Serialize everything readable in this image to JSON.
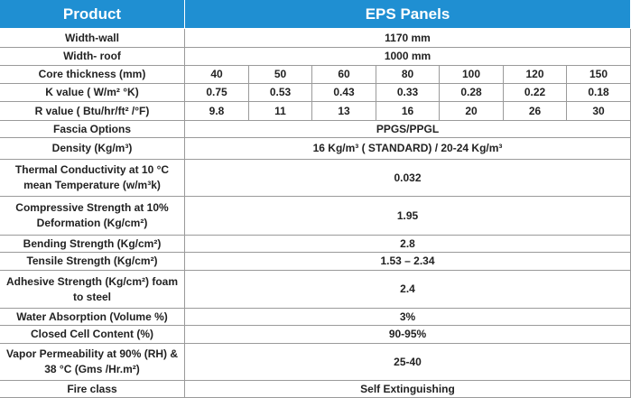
{
  "header": {
    "title": "Product",
    "product": "EPS Panels"
  },
  "rows": [
    {
      "label": "Width-wall",
      "values": [
        "1170 mm"
      ]
    },
    {
      "label": "Width- roof",
      "values": [
        "1000 mm"
      ]
    },
    {
      "label": "Core thickness (mm)",
      "values": [
        "40",
        "50",
        "60",
        "80",
        "100",
        "120",
        "150"
      ]
    },
    {
      "label": "K value ( W/m² °K)",
      "values": [
        "0.75",
        "0.53",
        "0.43",
        "0.33",
        "0.28",
        "0.22",
        "0.18"
      ]
    },
    {
      "label": "R value   ( Btu/hr/ft² /°F)",
      "values": [
        "9.8",
        "11",
        "13",
        "16",
        "20",
        "26",
        "30"
      ]
    },
    {
      "label": "Fascia Options",
      "values": [
        "PPGS/PPGL"
      ]
    },
    {
      "label": "Density (Kg/m³)",
      "values": [
        "16 Kg/m³ ( STANDARD) / 20-24 Kg/m³"
      ]
    },
    {
      "label": "Thermal Conductivity at 10 °C mean Temperature (w/m³k)",
      "values": [
        "0.032"
      ]
    },
    {
      "label": "Compressive Strength at 10% Deformation (Kg/cm²)",
      "values": [
        "1.95"
      ]
    },
    {
      "label": "Bending Strength (Kg/cm²)",
      "values": [
        "2.8"
      ]
    },
    {
      "label": "Tensile Strength (Kg/cm²)",
      "values": [
        "1.53 – 2.34"
      ]
    },
    {
      "label": "Adhesive Strength (Kg/cm²) foam to steel",
      "values": [
        "2.4"
      ]
    },
    {
      "label": "Water Absorption (Volume %)",
      "values": [
        "3%"
      ]
    },
    {
      "label": "Closed Cell Content (%)",
      "values": [
        "90-95%"
      ]
    },
    {
      "label": "Vapor Permeability at 90% (RH) & 38 °C (Gms /Hr.m²)",
      "values": [
        "25-40"
      ]
    },
    {
      "label": "Fire class",
      "values": [
        "Self Extinguishing"
      ]
    }
  ]
}
